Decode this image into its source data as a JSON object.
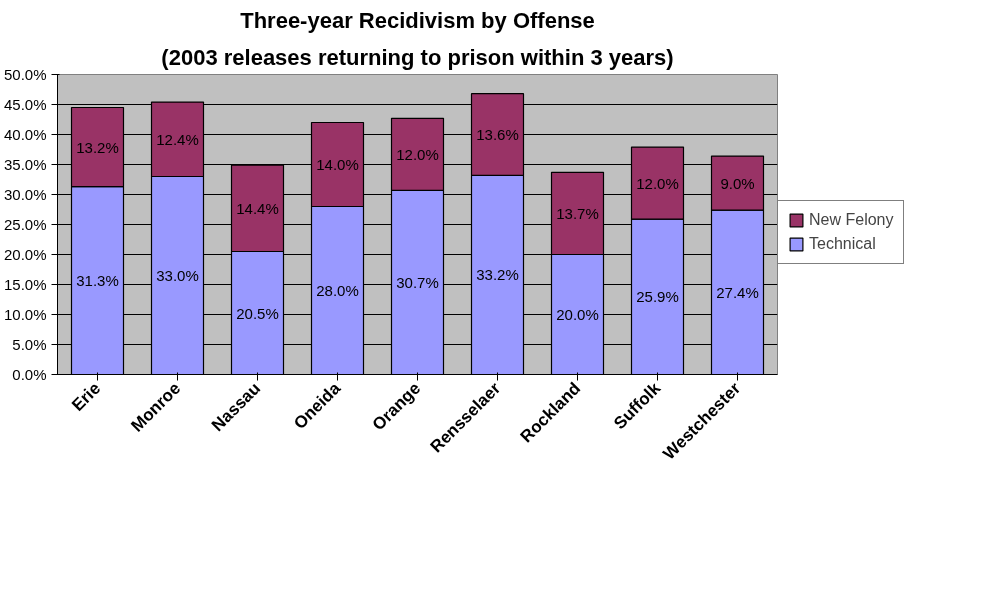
{
  "chart_data": {
    "type": "bar",
    "title": "Three-year Recidivism by Offense",
    "subtitle": "(2003 releases returning to prison within 3 years)",
    "categories": [
      "Erie",
      "Monroe",
      "Nassau",
      "Oneida",
      "Orange",
      "Rensselaer",
      "Rockland",
      "Suffolk",
      "Westchester"
    ],
    "stacked": true,
    "series": [
      {
        "name": "Technical",
        "color": "#9999ff",
        "values": [
          31.3,
          33.0,
          20.5,
          28.0,
          30.7,
          33.2,
          20.0,
          25.9,
          27.4
        ],
        "value_labels": [
          "31.3%",
          "33.0%",
          "20.5%",
          "28.0%",
          "30.7%",
          "33.2%",
          "20.0%",
          "25.9%",
          "27.4%"
        ]
      },
      {
        "name": "New Felony",
        "color": "#993366",
        "values": [
          13.2,
          12.4,
          14.4,
          14.0,
          12.0,
          13.6,
          13.7,
          12.0,
          9.0
        ],
        "value_labels": [
          "13.2%",
          "12.4%",
          "14.4%",
          "14.0%",
          "12.0%",
          "13.6%",
          "13.7%",
          "12.0%",
          "9.0%"
        ]
      }
    ],
    "ylim": [
      0,
      50
    ],
    "yticks": [
      {
        "value": 0,
        "label": "0.0%"
      },
      {
        "value": 5,
        "label": "5.0%"
      },
      {
        "value": 10,
        "label": "10.0%"
      },
      {
        "value": 15,
        "label": "15.0%"
      },
      {
        "value": 20,
        "label": "20.0%"
      },
      {
        "value": 25,
        "label": "25.0%"
      },
      {
        "value": 30,
        "label": "30.0%"
      },
      {
        "value": 35,
        "label": "35.0%"
      },
      {
        "value": 40,
        "label": "40.0%"
      },
      {
        "value": 45,
        "label": "45.0%"
      },
      {
        "value": 50,
        "label": "50.0%"
      }
    ],
    "grid": "y",
    "legend": "right"
  }
}
